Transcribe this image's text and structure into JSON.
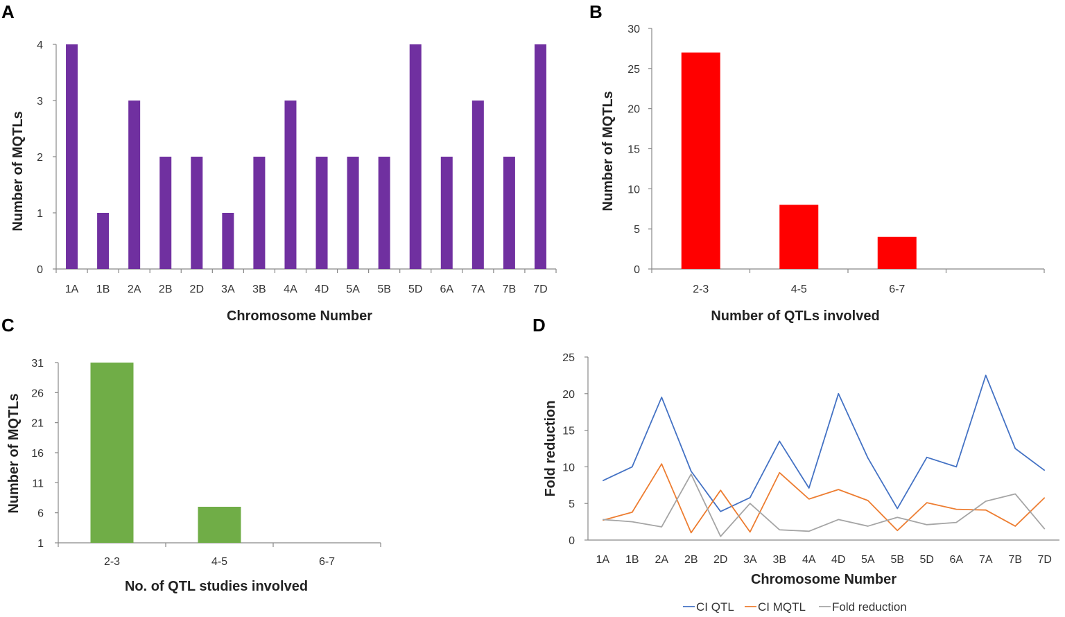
{
  "chart_data": [
    {
      "panel_label": "A",
      "type": "bar",
      "xlabel": "Chromosome Number",
      "ylabel": "Number of MQTLs",
      "ylim": [
        0,
        4
      ],
      "yticks": [
        0,
        1,
        2,
        3,
        4
      ],
      "categories": [
        "1A",
        "1B",
        "2A",
        "2B",
        "2D",
        "3A",
        "3B",
        "4A",
        "4D",
        "5A",
        "5B",
        "5D",
        "6A",
        "7A",
        "7B",
        "7D"
      ],
      "values": [
        4,
        1,
        3,
        2,
        2,
        1,
        2,
        3,
        2,
        2,
        2,
        4,
        2,
        3,
        2,
        4
      ],
      "color": "#7030A0"
    },
    {
      "panel_label": "B",
      "type": "bar",
      "xlabel": "Number of QTLs involved",
      "ylabel": "Number of MQTLs",
      "ylim": [
        0,
        30
      ],
      "yticks": [
        0,
        5,
        10,
        15,
        20,
        25,
        30
      ],
      "categories": [
        "2-3",
        "4-5",
        "6-7",
        ""
      ],
      "values": [
        27,
        8,
        4,
        null
      ],
      "color": "#FF0000"
    },
    {
      "panel_label": "C",
      "type": "bar",
      "xlabel": "No. of QTL studies involved",
      "ylabel": "Number of MQTLs",
      "ylim": [
        1,
        31
      ],
      "yticks": [
        1,
        6,
        11,
        16,
        21,
        26,
        31
      ],
      "categories": [
        "2-3",
        "4-5",
        "6-7"
      ],
      "values": [
        31,
        7,
        null
      ],
      "color": "#70AD47"
    },
    {
      "panel_label": "D",
      "type": "line",
      "xlabel": "Chromosome Number",
      "ylabel": "Fold reduction",
      "ylim": [
        0,
        25
      ],
      "yticks": [
        0,
        5,
        10,
        15,
        20,
        25
      ],
      "categories": [
        "1A",
        "1B",
        "2A",
        "2B",
        "2D",
        "3A",
        "3B",
        "4A",
        "4D",
        "5A",
        "5B",
        "5D",
        "6A",
        "7A",
        "7B",
        "7D"
      ],
      "series": [
        {
          "name": "CI QTL",
          "color": "#4472C4",
          "values": [
            8.1,
            10.0,
            19.5,
            9.4,
            3.9,
            5.8,
            13.5,
            7.1,
            20.0,
            11.2,
            4.3,
            11.3,
            10.0,
            22.5,
            12.5,
            9.5
          ]
        },
        {
          "name": "CI MQTL",
          "color": "#ED7D31",
          "values": [
            2.7,
            3.8,
            10.4,
            1.0,
            6.8,
            1.1,
            9.2,
            5.6,
            6.9,
            5.4,
            1.3,
            5.1,
            4.2,
            4.1,
            1.9,
            5.8
          ]
        },
        {
          "name": "Fold reduction",
          "color": "#A5A5A5",
          "values": [
            2.8,
            2.5,
            1.8,
            9.0,
            0.5,
            5.0,
            1.4,
            1.2,
            2.8,
            1.9,
            3.1,
            2.1,
            2.4,
            5.3,
            6.3,
            1.5
          ]
        }
      ]
    }
  ]
}
